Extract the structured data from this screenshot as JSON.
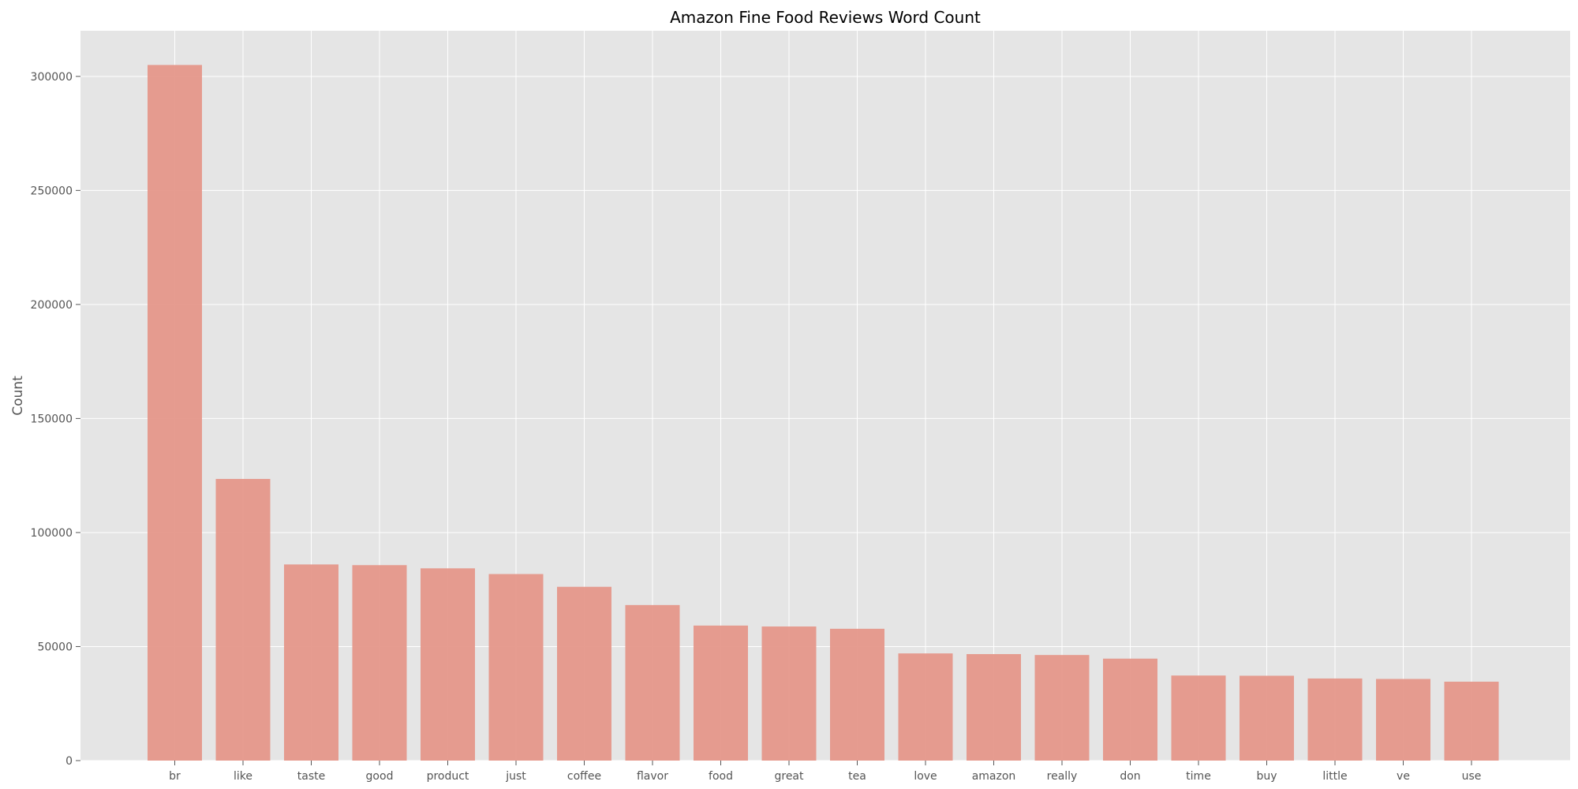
{
  "chart_data": {
    "type": "bar",
    "title": "Amazon Fine Food Reviews Word Count",
    "xlabel": "",
    "ylabel": "Count",
    "categories": [
      "br",
      "like",
      "taste",
      "good",
      "product",
      "just",
      "coffee",
      "flavor",
      "food",
      "great",
      "tea",
      "love",
      "amazon",
      "really",
      "don",
      "time",
      "buy",
      "little",
      "ve",
      "use"
    ],
    "values": [
      305000,
      123500,
      86000,
      85700,
      84300,
      81800,
      76200,
      68200,
      59200,
      58800,
      57800,
      47000,
      46700,
      46300,
      44700,
      37300,
      37200,
      36000,
      35800,
      34600
    ],
    "ylim": [
      0,
      320000
    ],
    "yticks": [
      0,
      50000,
      100000,
      150000,
      200000,
      250000,
      300000
    ],
    "ytick_labels": [
      "0",
      "50000",
      "100000",
      "150000",
      "200000",
      "250000",
      "300000"
    ],
    "grid": true,
    "colors": {
      "bar": "#e5978a",
      "plot_background": "#e5e5e5",
      "grid": "#ffffff",
      "text": "#555555"
    }
  }
}
